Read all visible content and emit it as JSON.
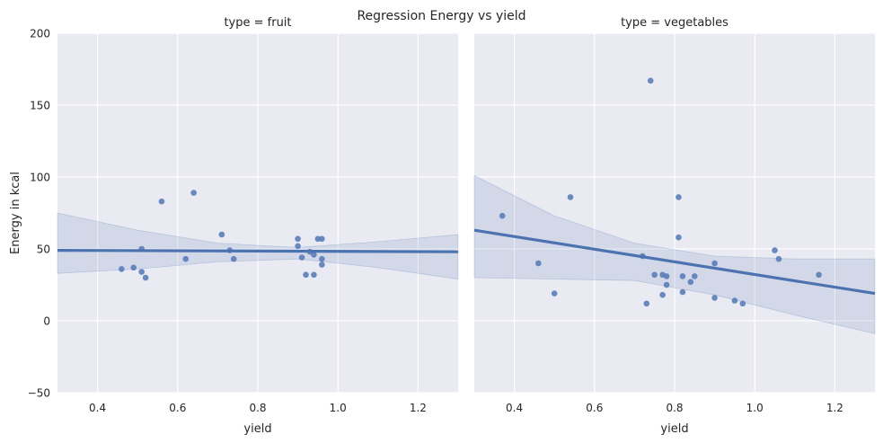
{
  "figure": {
    "suptitle": "Regression Energy vs yield"
  },
  "style": {
    "panel_bg": "#EAEAF2",
    "grid": "#FFFFFF",
    "point": "#5A7DB8",
    "line": "#4C72B0",
    "band": "#4C72B0",
    "text": "#262626"
  },
  "chart_data": [
    {
      "type": "scatter",
      "title": "type = fruit",
      "xlabel": "yield",
      "ylabel": "Energy in kcal",
      "xlim": [
        0.3,
        1.3
      ],
      "ylim": [
        -50,
        200
      ],
      "xticks": [
        0.4,
        0.6,
        0.8,
        1.0,
        1.2
      ],
      "xtick_labels": [
        "0.4",
        "0.6",
        "0.8",
        "1.0",
        "1.2"
      ],
      "yticks": [
        -50,
        0,
        50,
        100,
        150,
        200
      ],
      "ytick_labels": [
        "−50",
        "0",
        "50",
        "100",
        "150",
        "200"
      ],
      "grid": true,
      "points": [
        [
          0.46,
          36
        ],
        [
          0.49,
          37
        ],
        [
          0.51,
          34
        ],
        [
          0.51,
          50
        ],
        [
          0.52,
          30
        ],
        [
          0.56,
          83
        ],
        [
          0.62,
          43
        ],
        [
          0.64,
          89
        ],
        [
          0.71,
          60
        ],
        [
          0.73,
          49
        ],
        [
          0.74,
          43
        ],
        [
          0.9,
          57
        ],
        [
          0.9,
          52
        ],
        [
          0.91,
          44
        ],
        [
          0.92,
          32
        ],
        [
          0.93,
          48
        ],
        [
          0.94,
          32
        ],
        [
          0.94,
          46
        ],
        [
          0.95,
          57
        ],
        [
          0.96,
          57
        ],
        [
          0.96,
          43
        ],
        [
          0.96,
          39
        ]
      ],
      "regression_line": [
        [
          0.3,
          49
        ],
        [
          1.3,
          48
        ]
      ],
      "ci_upper": [
        [
          0.3,
          75
        ],
        [
          0.5,
          63
        ],
        [
          0.7,
          54
        ],
        [
          0.9,
          51
        ],
        [
          1.1,
          55
        ],
        [
          1.3,
          60
        ]
      ],
      "ci_lower": [
        [
          0.3,
          33
        ],
        [
          0.5,
          36
        ],
        [
          0.7,
          41
        ],
        [
          0.9,
          43
        ],
        [
          1.1,
          37
        ],
        [
          1.3,
          29
        ]
      ]
    },
    {
      "type": "scatter",
      "title": "type = vegetables",
      "xlabel": "yield",
      "ylabel": "",
      "xlim": [
        0.3,
        1.3
      ],
      "ylim": [
        -50,
        200
      ],
      "xticks": [
        0.4,
        0.6,
        0.8,
        1.0,
        1.2
      ],
      "xtick_labels": [
        "0.4",
        "0.6",
        "0.8",
        "1.0",
        "1.2"
      ],
      "yticks": [
        -50,
        0,
        50,
        100,
        150,
        200
      ],
      "ytick_labels": [],
      "grid": true,
      "points": [
        [
          0.37,
          73
        ],
        [
          0.46,
          40
        ],
        [
          0.5,
          19
        ],
        [
          0.54,
          86
        ],
        [
          0.72,
          45
        ],
        [
          0.73,
          12
        ],
        [
          0.74,
          167
        ],
        [
          0.75,
          32
        ],
        [
          0.77,
          32
        ],
        [
          0.77,
          18
        ],
        [
          0.78,
          25
        ],
        [
          0.78,
          31
        ],
        [
          0.81,
          86
        ],
        [
          0.81,
          58
        ],
        [
          0.82,
          31
        ],
        [
          0.82,
          20
        ],
        [
          0.84,
          27
        ],
        [
          0.85,
          31
        ],
        [
          0.9,
          40
        ],
        [
          0.9,
          16
        ],
        [
          0.95,
          14
        ],
        [
          0.97,
          12
        ],
        [
          1.05,
          49
        ],
        [
          1.06,
          43
        ],
        [
          1.16,
          32
        ]
      ],
      "regression_line": [
        [
          0.3,
          63
        ],
        [
          1.3,
          19
        ]
      ],
      "ci_upper": [
        [
          0.3,
          101
        ],
        [
          0.5,
          73
        ],
        [
          0.7,
          54
        ],
        [
          0.9,
          45
        ],
        [
          1.1,
          43
        ],
        [
          1.3,
          43
        ]
      ],
      "ci_lower": [
        [
          0.3,
          30
        ],
        [
          0.5,
          29
        ],
        [
          0.7,
          28
        ],
        [
          0.9,
          18
        ],
        [
          1.1,
          4
        ],
        [
          1.3,
          -9
        ]
      ]
    }
  ]
}
